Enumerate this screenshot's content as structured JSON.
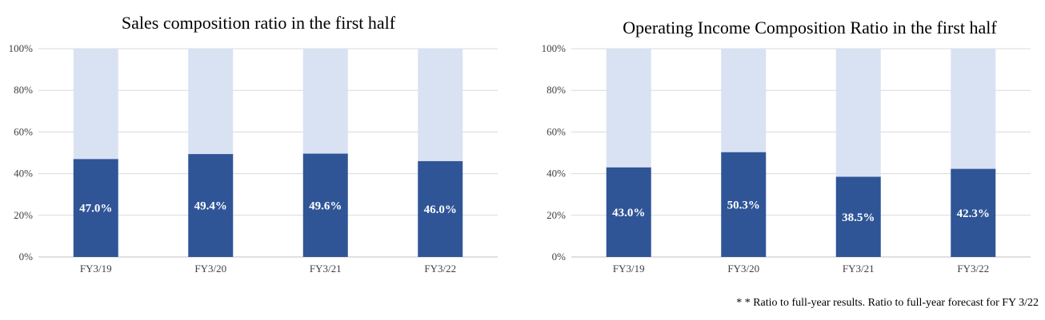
{
  "colors": {
    "primary": "#2f5597",
    "remainder": "#d9e2f3",
    "grid": "#d9d9d9",
    "axis": "#bfbfbf"
  },
  "chart_data": [
    {
      "type": "bar",
      "stacked": true,
      "title": "Sales composition ratio in the first half",
      "categories": [
        "FY3/19",
        "FY3/20",
        "FY3/21",
        "FY3/22"
      ],
      "values": [
        47.0,
        49.4,
        49.6,
        46.0
      ],
      "value_labels": [
        "47.0%",
        "49.4%",
        "49.6%",
        "46.0%"
      ],
      "yticks": [
        "0%",
        "20%",
        "40%",
        "60%",
        "80%",
        "100%"
      ],
      "ylim": [
        0,
        100
      ],
      "grid": true
    },
    {
      "type": "bar",
      "stacked": true,
      "title": "Operating Income Composition Ratio in the first half",
      "categories": [
        "FY3/19",
        "FY3/20",
        "FY3/21",
        "FY3/22"
      ],
      "values": [
        43.0,
        50.3,
        38.5,
        42.3
      ],
      "value_labels": [
        "43.0%",
        "50.3%",
        "38.5%",
        "42.3%"
      ],
      "yticks": [
        "0%",
        "20%",
        "40%",
        "60%",
        "80%",
        "100%"
      ],
      "ylim": [
        0,
        100
      ],
      "grid": true
    }
  ],
  "footnote": "* * Ratio to full-year results. Ratio to full-year forecast for FY 3/22"
}
